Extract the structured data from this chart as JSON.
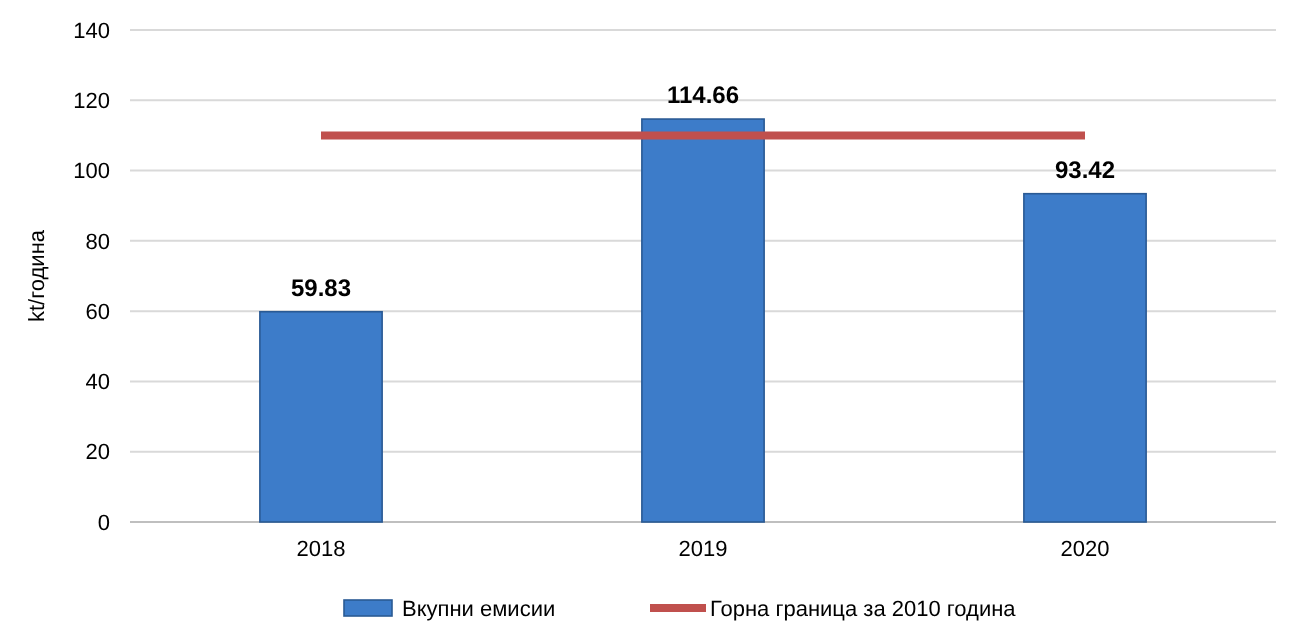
{
  "chart_data": {
    "type": "bar",
    "ylabel": "kt/година",
    "categories": [
      "2018",
      "2019",
      "2020"
    ],
    "series": [
      {
        "name": "Вкупни емисии",
        "color": "#3d7cc9",
        "values": [
          59.83,
          114.66,
          93.42
        ],
        "value_labels": [
          "59.83",
          "114.66",
          "93.42"
        ]
      },
      {
        "name": "Горна граница за 2010 година",
        "type": "line",
        "color": "#c0504d",
        "values": [
          110,
          110,
          110
        ],
        "marker": "none"
      }
    ],
    "ylim": [
      0,
      140
    ],
    "yticks": [
      0,
      20,
      40,
      60,
      80,
      100,
      120,
      140
    ],
    "grid": "y",
    "legend": "bottom"
  }
}
